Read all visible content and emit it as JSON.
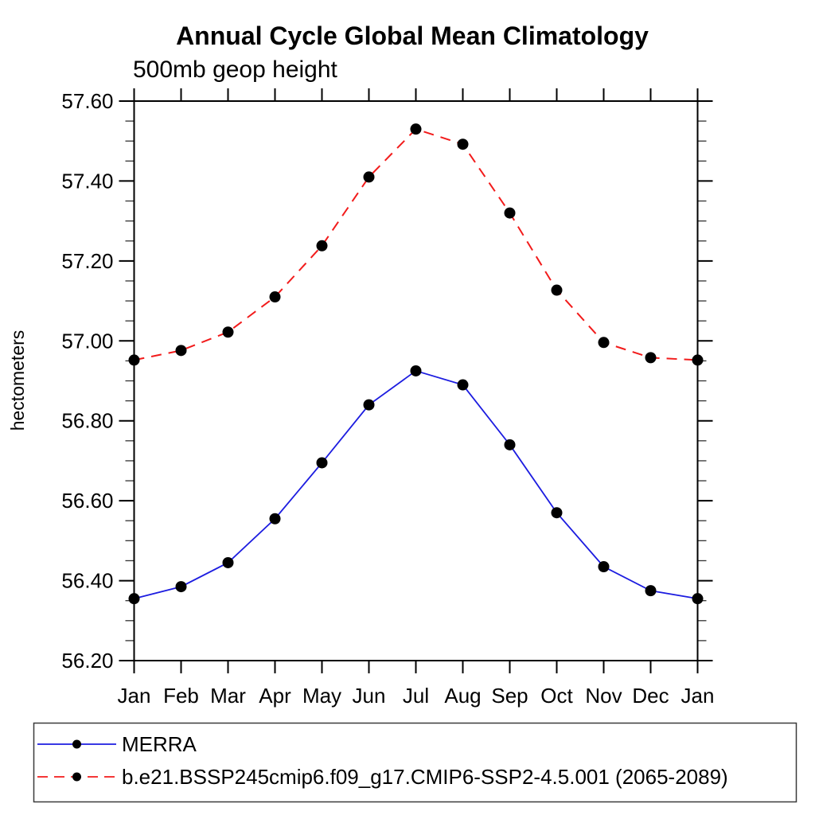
{
  "page": {
    "background": "#ffffff"
  },
  "chart_data": {
    "type": "line",
    "title": "Annual Cycle Global Mean Climatology",
    "subtitle": "500mb geop height",
    "ylabel": "hectometers",
    "xlabel": "",
    "categories": [
      "Jan",
      "Feb",
      "Mar",
      "Apr",
      "May",
      "Jun",
      "Jul",
      "Aug",
      "Sep",
      "Oct",
      "Nov",
      "Dec",
      "Jan"
    ],
    "ylim": [
      56.2,
      57.6
    ],
    "y_major_step": 0.2,
    "y_minor_step": 0.05,
    "y_tick_format_decimals": 2,
    "grid": false,
    "legend_position": "bottom-left-box",
    "marker": {
      "shape": "filled-circle",
      "color": "#000000"
    },
    "colors": {
      "axis": "#000000",
      "merra_line": "#1c1ce0",
      "model_line": "#f21b1b"
    },
    "series": [
      {
        "name": "MERRA",
        "color": "#1c1ce0",
        "line_style": "solid",
        "values": [
          56.355,
          56.385,
          56.445,
          56.555,
          56.695,
          56.84,
          56.925,
          56.89,
          56.74,
          56.57,
          56.435,
          56.375,
          56.355
        ]
      },
      {
        "name": "b.e21.BSSP245cmip6.f09_g17.CMIP6-SSP2-4.5.001 (2065-2089)",
        "color": "#f21b1b",
        "line_style": "dashed",
        "values": [
          56.952,
          56.976,
          57.022,
          57.11,
          57.238,
          57.41,
          57.53,
          57.492,
          57.32,
          57.127,
          56.996,
          56.958,
          56.952
        ]
      }
    ]
  }
}
